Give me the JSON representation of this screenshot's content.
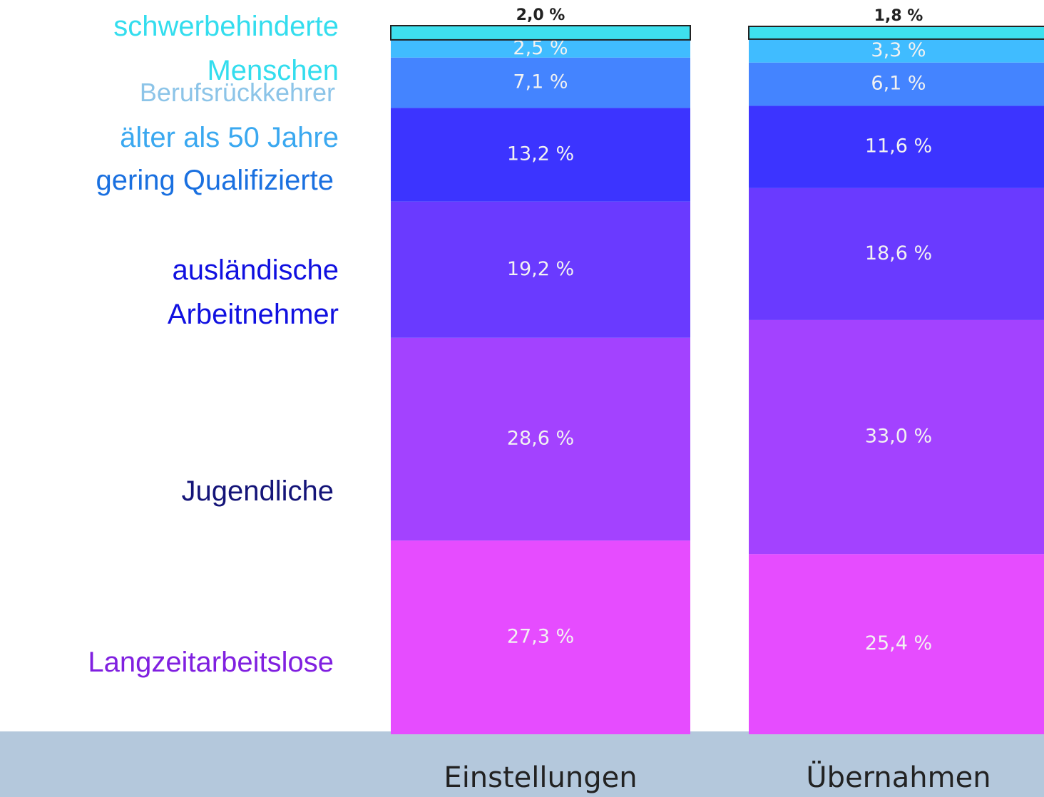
{
  "chart_data": {
    "type": "stacked_bar",
    "categories": [
      "Einstellungen",
      "Übernahmen"
    ],
    "series": [
      {
        "name": "Langzeitarbeitslose",
        "color": "#e64cff",
        "label_color": "#8020e0",
        "values": [
          27.3,
          25.4
        ],
        "value_labels": [
          "27,3 %",
          "25,4 %"
        ]
      },
      {
        "name": "Jugendliche",
        "color": "#a342ff",
        "label_color": "#141478",
        "values": [
          28.6,
          33.0
        ],
        "value_labels": [
          "28,6 %",
          "33,0 %"
        ]
      },
      {
        "name": "ausländische Arbeitnehmer",
        "color": "#6a3aff",
        "label_color": "#1010e0",
        "values": [
          19.2,
          18.6
        ],
        "value_labels": [
          "19,2 %",
          "18,6 %"
        ]
      },
      {
        "name": "gering Qualifizierte",
        "color": "#3c34ff",
        "label_color": "#1a70e0",
        "values": [
          13.2,
          11.6
        ],
        "value_labels": [
          "13,2 %",
          "11,6 %"
        ]
      },
      {
        "name": "älter als 50 Jahre",
        "color": "#4484ff",
        "label_color": "#3aa8f0",
        "values": [
          7.1,
          6.1
        ],
        "value_labels": [
          "7,1 %",
          "6,1 %"
        ]
      },
      {
        "name": "Berufsrückkehrer",
        "color": "#40bcff",
        "label_color": "#8cc4e8",
        "values": [
          2.5,
          3.3
        ],
        "value_labels": [
          "2,5 %",
          "3,3 %"
        ]
      },
      {
        "name": "schwerbehinderte Menschen",
        "color": "#3ee0ee",
        "label_color": "#33ddee",
        "values": [
          2.0,
          1.8
        ],
        "value_labels": [
          "2,0 %",
          "1,8 %"
        ]
      }
    ]
  }
}
